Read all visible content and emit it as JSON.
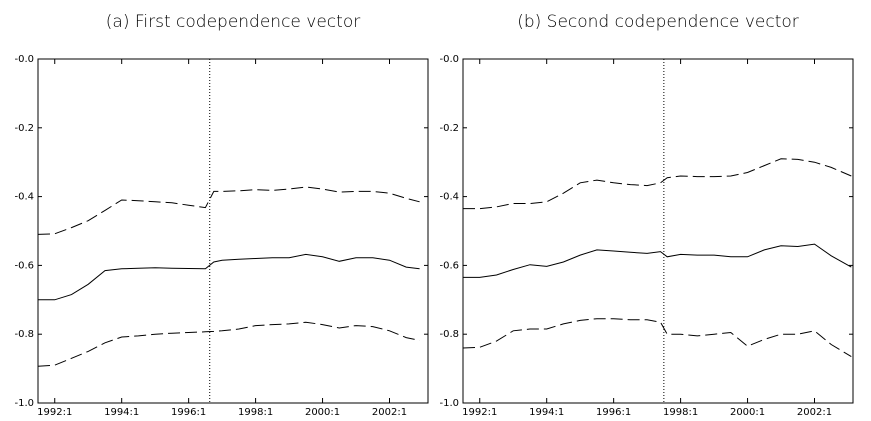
{
  "chart_data": [
    {
      "type": "line",
      "title": "(a) First codependence vector",
      "x": [
        1991.5,
        1992,
        1992.5,
        1993,
        1993.5,
        1994,
        1994.5,
        1995,
        1995.5,
        1996,
        1996.5,
        1996.75,
        1997,
        1997.5,
        1998,
        1998.5,
        1999,
        1999.5,
        2000,
        2000.5,
        2001,
        2001.5,
        2002,
        2002.5,
        2002.9
      ],
      "series": [
        {
          "color": "#000000",
          "style": "solid",
          "values": [
            -0.7,
            -0.7,
            -0.685,
            -0.655,
            -0.615,
            -0.61,
            -0.608,
            -0.607,
            -0.608,
            -0.609,
            -0.61,
            -0.59,
            -0.585,
            -0.582,
            -0.58,
            -0.578,
            -0.578,
            -0.568,
            -0.575,
            -0.588,
            -0.578,
            -0.578,
            -0.585,
            -0.605,
            -0.61
          ]
        },
        {
          "color": "#000000",
          "style": "dashed",
          "values": [
            -0.51,
            -0.508,
            -0.49,
            -0.47,
            -0.44,
            -0.41,
            -0.412,
            -0.415,
            -0.418,
            -0.425,
            -0.432,
            -0.385,
            -0.385,
            -0.383,
            -0.38,
            -0.382,
            -0.378,
            -0.372,
            -0.378,
            -0.387,
            -0.385,
            -0.385,
            -0.39,
            -0.405,
            -0.415
          ]
        },
        {
          "color": "#000000",
          "style": "dashed",
          "values": [
            -0.893,
            -0.89,
            -0.87,
            -0.85,
            -0.825,
            -0.808,
            -0.805,
            -0.8,
            -0.797,
            -0.795,
            -0.793,
            -0.792,
            -0.79,
            -0.785,
            -0.775,
            -0.772,
            -0.77,
            -0.765,
            -0.772,
            -0.782,
            -0.775,
            -0.778,
            -0.79,
            -0.81,
            -0.818
          ]
        }
      ],
      "vline": 1996.63,
      "xlim": [
        1991.5,
        2003.15
      ],
      "xticks": [
        {
          "value": 1992,
          "label": "1992:1"
        },
        {
          "value": 1994,
          "label": "1994:1"
        },
        {
          "value": 1996,
          "label": "1996:1"
        },
        {
          "value": 1998,
          "label": "1998:1"
        },
        {
          "value": 2000,
          "label": "2000:1"
        },
        {
          "value": 2002,
          "label": "2002:1"
        }
      ],
      "ylim": [
        -1,
        0
      ],
      "yticks": [
        {
          "value": 0,
          "label": "-0.0"
        },
        -0.2,
        -0.4,
        -0.6,
        -0.8,
        {
          "value": -1,
          "label": "-1.0"
        }
      ]
    },
    {
      "type": "line",
      "title": "(b) Second codependence vector",
      "x": [
        1991.5,
        1992,
        1992.5,
        1993,
        1993.5,
        1994,
        1994.5,
        1995,
        1995.5,
        1996,
        1996.5,
        1997,
        1997.4,
        1997.6,
        1998,
        1998.5,
        1999,
        1999.5,
        2000,
        2000.5,
        2001,
        2001.5,
        2002,
        2002.5,
        2003.1
      ],
      "series": [
        {
          "color": "#000000",
          "style": "solid",
          "values": [
            -0.635,
            -0.635,
            -0.628,
            -0.612,
            -0.598,
            -0.603,
            -0.59,
            -0.57,
            -0.555,
            -0.558,
            -0.562,
            -0.565,
            -0.56,
            -0.575,
            -0.568,
            -0.57,
            -0.57,
            -0.575,
            -0.575,
            -0.555,
            -0.543,
            -0.545,
            -0.538,
            -0.572,
            -0.605
          ]
        },
        {
          "color": "#000000",
          "style": "dashed",
          "values": [
            -0.435,
            -0.435,
            -0.43,
            -0.42,
            -0.42,
            -0.415,
            -0.39,
            -0.36,
            -0.352,
            -0.36,
            -0.365,
            -0.368,
            -0.36,
            -0.345,
            -0.34,
            -0.342,
            -0.342,
            -0.34,
            -0.33,
            -0.31,
            -0.29,
            -0.292,
            -0.3,
            -0.315,
            -0.34
          ]
        },
        {
          "color": "#000000",
          "style": "dashed",
          "values": [
            -0.84,
            -0.838,
            -0.82,
            -0.79,
            -0.785,
            -0.785,
            -0.77,
            -0.76,
            -0.755,
            -0.755,
            -0.758,
            -0.758,
            -0.765,
            -0.8,
            -0.8,
            -0.805,
            -0.8,
            -0.795,
            -0.835,
            -0.815,
            -0.8,
            -0.8,
            -0.79,
            -0.83,
            -0.865
          ]
        }
      ],
      "vline": 1997.5,
      "xlim": [
        1991.5,
        2003.15
      ],
      "xticks": [
        {
          "value": 1992,
          "label": "1992:1"
        },
        {
          "value": 1994,
          "label": "1994:1"
        },
        {
          "value": 1996,
          "label": "1996:1"
        },
        {
          "value": 1998,
          "label": "1998:1"
        },
        {
          "value": 2000,
          "label": "2000:1"
        },
        {
          "value": 2002,
          "label": "2002:1"
        }
      ],
      "ylim": [
        -1,
        0
      ],
      "yticks": [
        {
          "value": 0,
          "label": "-0.0"
        },
        -0.2,
        -0.4,
        -0.6,
        -0.8,
        {
          "value": -1,
          "label": "-1.0"
        }
      ]
    }
  ]
}
